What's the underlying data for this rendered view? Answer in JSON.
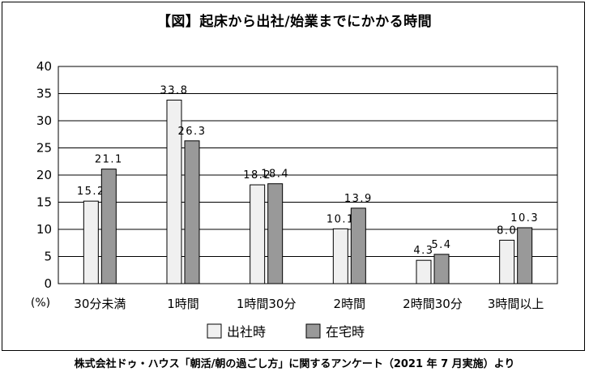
{
  "chart_data": {
    "type": "bar",
    "title": "【図】起床から出社/始業までにかかる時間",
    "y_unit_label": "(%)",
    "ylim": [
      0,
      40
    ],
    "yticks": [
      0,
      5,
      10,
      15,
      20,
      25,
      30,
      35,
      40
    ],
    "grid": true,
    "legend_position": "bottom",
    "categories": [
      "30分未満",
      "1時間",
      "1時間30分",
      "2時間",
      "2時間30分",
      "3時間以上"
    ],
    "series": [
      {
        "name": "出社時",
        "color": "#f0f0f0",
        "values": [
          15.2,
          33.8,
          18.2,
          10.1,
          4.3,
          8.0
        ],
        "labels": [
          "15.2",
          "33.8",
          "18.2",
          "10.1",
          "4.3",
          "8.0"
        ]
      },
      {
        "name": "在宅時",
        "color": "#999999",
        "values": [
          21.1,
          26.3,
          18.4,
          13.9,
          5.4,
          10.3
        ],
        "labels": [
          "21.1",
          "26.3",
          "18.4",
          "13.9",
          "5.4",
          "10.3"
        ]
      }
    ],
    "source": "株式会社ドゥ・ハウス「朝活/朝の過ごし方」に関するアンケート（2021 年 7 月実施）より"
  }
}
